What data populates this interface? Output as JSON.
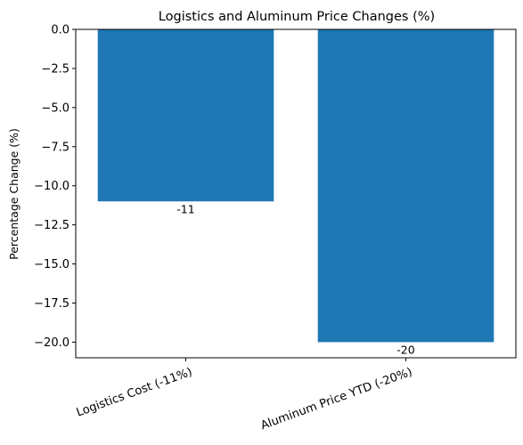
{
  "chart_data": {
    "type": "bar",
    "title": "Logistics and Aluminum Price Changes (%)",
    "xlabel": "",
    "ylabel": "Percentage Change (%)",
    "categories": [
      "Logistics Cost (-11%)",
      "Aluminum Price YTD (-20%)"
    ],
    "values": [
      -11,
      -20
    ],
    "data_labels": [
      "-11",
      "-20"
    ],
    "ylim": [
      -21,
      0
    ],
    "yticks": [
      0,
      -2.5,
      -5,
      -7.5,
      -10,
      -12.5,
      -15,
      -17.5,
      -20
    ],
    "ytick_labels": [
      "0.0",
      "−2.5",
      "−5.0",
      "−7.5",
      "−10.0",
      "−12.5",
      "−15.0",
      "−17.5",
      "−20.0"
    ],
    "bar_color": "#1f77b4",
    "grid": false,
    "legend": "none"
  }
}
